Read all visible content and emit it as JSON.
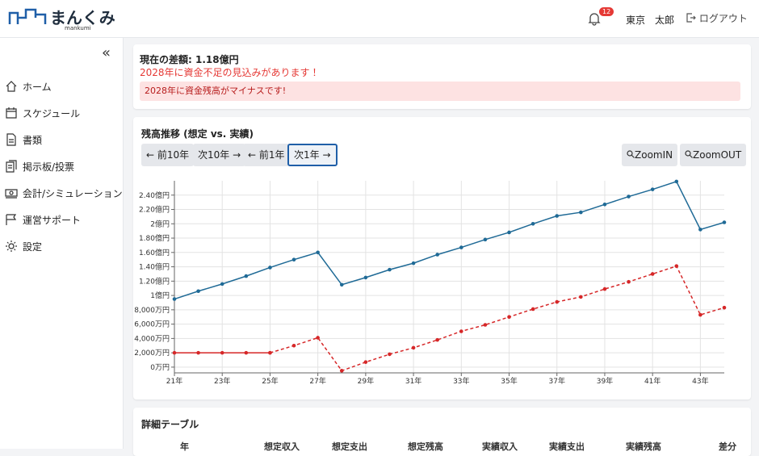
{
  "header": {
    "logo": "まんくみ",
    "logo_sub": "mankumi",
    "notifications": "12",
    "user": "東京　太郎",
    "logout": "ログアウト"
  },
  "sidebar": {
    "menu": [
      "ホーム",
      "スケジュール",
      "書類",
      "掲示板/投票",
      "会計/シミュレーション",
      "運営サポート",
      "設定"
    ]
  },
  "summary": {
    "difference": "現在の差額: 1.18億円",
    "warning": "2028年に資金不足の見込みがあります！",
    "alert": "2028年に資金残高がマイナスです!"
  },
  "controls": {
    "buttons": [
      "← 前10年",
      "次10年 →",
      "← 前1年",
      "次1年 →"
    ],
    "zoom_buttons": [
      "ZoomIN",
      "ZoomOUT"
    ]
  },
  "chart_data": {
    "type": "line",
    "title": "残高推移 (想定 vs. 実績)",
    "x": [
      21,
      22,
      23,
      24,
      25,
      26,
      27,
      28,
      29,
      30,
      31,
      32,
      33,
      34,
      35,
      36,
      37,
      38,
      39,
      40,
      41,
      42,
      43,
      44
    ],
    "xlim": [
      21,
      44
    ],
    "xticks": [
      {
        "value": 21,
        "label": "21年"
      },
      {
        "value": 23,
        "label": "23年"
      },
      {
        "value": 25,
        "label": "25年"
      },
      {
        "value": 27,
        "label": "27年"
      },
      {
        "value": 29,
        "label": "29年"
      },
      {
        "value": 31,
        "label": "31年"
      },
      {
        "value": 33,
        "label": "33年"
      },
      {
        "value": 35,
        "label": "35年"
      },
      {
        "value": 37,
        "label": "37年"
      },
      {
        "value": 39,
        "label": "39年"
      },
      {
        "value": 41,
        "label": "41年"
      },
      {
        "value": 43,
        "label": "43年"
      }
    ],
    "ylim": [
      -800,
      26000
    ],
    "yticks": [
      {
        "value": 0,
        "label": "0万円"
      },
      {
        "value": 2000,
        "label": "2,000万円"
      },
      {
        "value": 4000,
        "label": "4,000万円"
      },
      {
        "value": 6000,
        "label": "6,000万円"
      },
      {
        "value": 8000,
        "label": "8,000万円"
      },
      {
        "value": 10000,
        "label": "1億円"
      },
      {
        "value": 12000,
        "label": "1.20億円"
      },
      {
        "value": 14000,
        "label": "1.40億円"
      },
      {
        "value": 16000,
        "label": "1.60億円"
      },
      {
        "value": 18000,
        "label": "1.80億円"
      },
      {
        "value": 20000,
        "label": "2億円"
      },
      {
        "value": 22000,
        "label": "2.20億円"
      },
      {
        "value": 24000,
        "label": "2.40億円"
      }
    ],
    "grid": true,
    "series": [
      {
        "color": "#1f6a96",
        "dashed": false,
        "values": [
          9500,
          10600,
          11600,
          12700,
          13900,
          15000,
          16000,
          11500,
          12500,
          13600,
          14500,
          15700,
          16700,
          17800,
          18800,
          20000,
          21100,
          21600,
          22700,
          23800,
          24800,
          25900,
          19200,
          20200
        ]
      },
      {
        "color": "#d62728",
        "dashed": false,
        "values": [
          2000,
          2000,
          2000,
          2000,
          2000,
          null,
          null,
          null,
          null,
          null,
          null,
          null,
          null,
          null,
          null,
          null,
          null,
          null,
          null,
          null,
          null,
          null,
          null,
          null
        ]
      },
      {
        "color": "#d62728",
        "dashed": true,
        "values": [
          null,
          null,
          null,
          null,
          2000,
          3000,
          4100,
          -500,
          700,
          1800,
          2700,
          3800,
          5000,
          5900,
          7000,
          8100,
          9100,
          9800,
          10900,
          11900,
          13000,
          14100,
          7300,
          8300
        ]
      }
    ]
  },
  "table": {
    "title": "詳細テーブル",
    "columns": [
      "年",
      "想定収入",
      "想定支出",
      "想定残高",
      "実績収入",
      "実績支出",
      "実績残高",
      "差分"
    ]
  }
}
